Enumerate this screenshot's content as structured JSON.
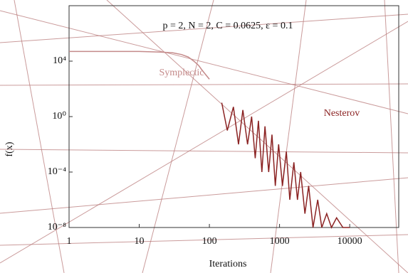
{
  "chart_data": {
    "type": "line",
    "title": "p = 2, N = 2, C = 0.0625, ε = 0.1",
    "x_label": "Iterations",
    "y_label": "f(x)",
    "xscale": "log",
    "yscale": "log",
    "xlim": [
      1,
      50000
    ],
    "ylim": [
      1e-08,
      100000000.0
    ],
    "xticks": [
      1,
      10,
      100,
      1000,
      10000
    ],
    "yticks": [
      {
        "value": 10000,
        "label": "10⁴"
      },
      {
        "value": 1,
        "label": "10⁰"
      },
      {
        "value": 0.0001,
        "label": "10⁻⁴"
      },
      {
        "value": 1e-08,
        "label": "10⁻⁸"
      }
    ],
    "series": [
      {
        "name": "Symplectic",
        "color": "#c48a8a",
        "x": [
          1,
          3,
          10,
          20,
          30,
          40,
          50,
          60,
          70,
          80,
          100
        ],
        "values": [
          50000,
          50000,
          50000,
          45000,
          40000,
          30000,
          20000,
          10000,
          5000,
          2000,
          500
        ]
      },
      {
        "name": "Nesterov",
        "color": "#8b2323",
        "x": [
          150,
          180,
          220,
          260,
          300,
          350,
          400,
          450,
          500,
          560,
          620,
          700,
          780,
          870,
          970,
          1100,
          1250,
          1400,
          1600,
          1800,
          2000,
          2300,
          2600,
          3000,
          3500,
          4000,
          4700,
          5500,
          6500,
          8000,
          10000
        ],
        "values": [
          10,
          0.1,
          5,
          0.01,
          3,
          0.01,
          1,
          0.001,
          0.5,
          0.0001,
          0.2,
          0.0001,
          0.05,
          1e-05,
          0.01,
          1e-05,
          0.003,
          1e-06,
          0.0005,
          1e-06,
          0.0001,
          1e-07,
          1e-05,
          1e-08,
          1e-06,
          1e-08,
          1e-07,
          1e-08,
          5e-08,
          1e-08,
          1e-08
        ]
      }
    ]
  }
}
